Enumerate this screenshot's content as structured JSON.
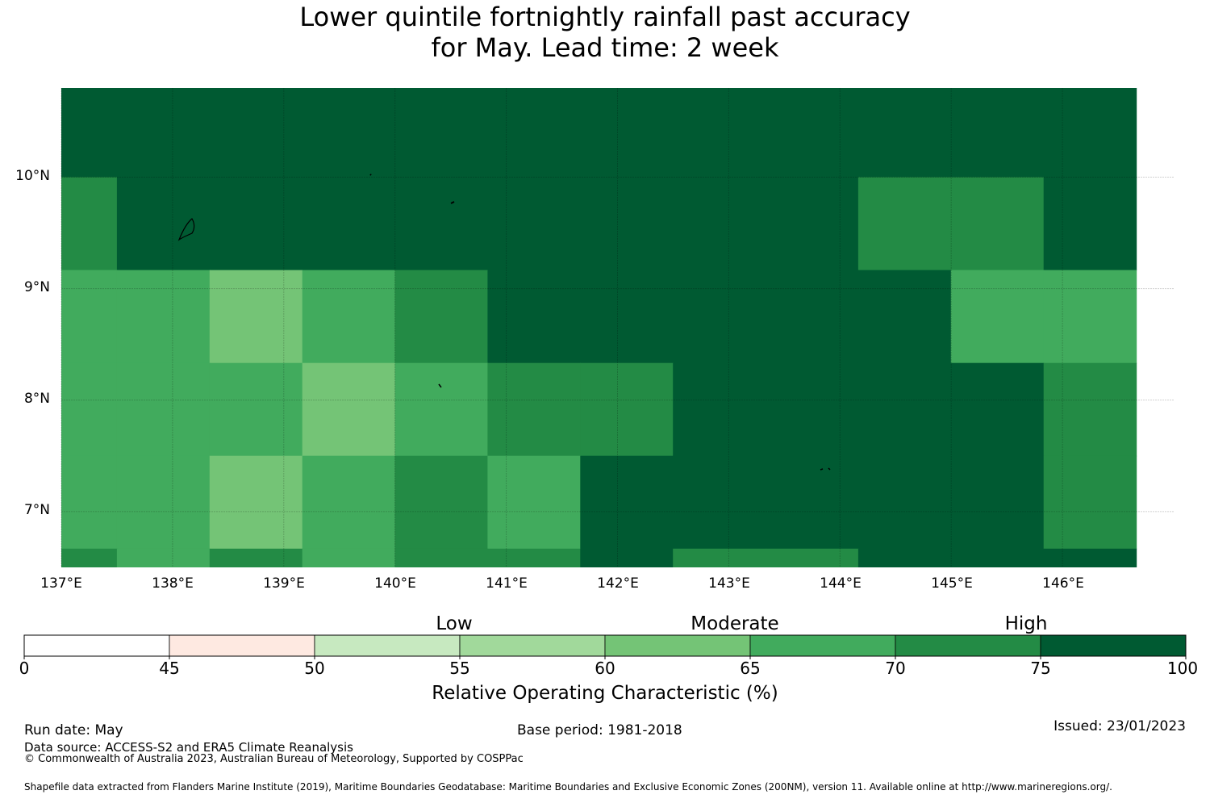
{
  "title_line1": "Lower quintile fortnightly rainfall past accuracy",
  "title_line2": "for May. Lead time: 2 week",
  "chart_data": {
    "type": "heatmap",
    "title": "Lower quintile fortnightly rainfall past accuracy for May. Lead time: 2 week",
    "xlabel": "Longitude",
    "ylabel": "Latitude",
    "xlim": [
      137.0,
      147.0
    ],
    "ylim": [
      6.5,
      10.8
    ],
    "x_ticks": [
      "137°E",
      "138°E",
      "139°E",
      "140°E",
      "141°E",
      "142°E",
      "143°E",
      "144°E",
      "145°E",
      "146°E"
    ],
    "x_tick_values": [
      137,
      138,
      139,
      140,
      141,
      142,
      143,
      144,
      145,
      146
    ],
    "y_ticks": [
      "10°N",
      "9°N",
      "8°N",
      "7°N"
    ],
    "y_tick_values": [
      10,
      9,
      8,
      7
    ],
    "cell_size_deg": 0.833,
    "origin_lon": 136.667,
    "origin_lat": 10.833,
    "rows_north_to_south": [
      [
        80,
        80,
        80,
        80,
        80,
        80,
        80,
        80,
        80,
        80,
        80,
        80
      ],
      [
        72,
        80,
        80,
        80,
        80,
        80,
        80,
        80,
        80,
        72,
        72,
        80
      ],
      [
        67,
        67,
        62,
        67,
        72,
        80,
        80,
        80,
        80,
        80,
        67,
        67
      ],
      [
        67,
        67,
        67,
        62,
        67,
        72,
        72,
        80,
        80,
        80,
        80,
        72
      ],
      [
        67,
        67,
        62,
        67,
        72,
        67,
        80,
        80,
        80,
        80,
        80,
        72
      ],
      [
        72,
        67,
        72,
        67,
        72,
        72,
        80,
        72,
        72,
        80,
        80,
        80
      ],
      [
        80,
        72,
        67,
        67,
        72,
        72,
        72,
        67,
        72,
        72,
        80,
        72
      ],
      [
        80,
        72,
        72,
        67,
        67,
        62,
        62,
        67,
        67,
        72,
        72,
        72
      ]
    ],
    "colorbar": {
      "label": "Relative Operating Characteristic (%)",
      "boundaries": [
        0,
        45,
        50,
        55,
        60,
        65,
        70,
        75,
        100
      ],
      "tick_labels": [
        "0",
        "45",
        "50",
        "55",
        "60",
        "65",
        "70",
        "75",
        "100"
      ],
      "colors": [
        "#ffffff",
        "#fee9e1",
        "#c7e9c0",
        "#a1d99b",
        "#74c476",
        "#41ab5d",
        "#238b45",
        "#005a32"
      ],
      "band_labels": [
        "Low",
        "Moderate",
        "High"
      ]
    }
  },
  "footer": {
    "run_date": "Run date: May",
    "base_period": "Base period: 1981-2018",
    "issued": "Issued: 23/01/2023",
    "data_source": "Data source: ACCESS-S2 and ERA5 Climate Reanalysis",
    "copyright": "© Commonwealth of Australia 2023, Australian Bureau of Meteorology, Supported by COSPPac",
    "shapefile": "Shapefile data extracted from Flanders Marine Institute (2019), Maritime Boundaries Geodatabase: Maritime Boundaries and Exclusive Economic Zones (200NM), version 11. Available online at http://www.marineregions.org/."
  }
}
